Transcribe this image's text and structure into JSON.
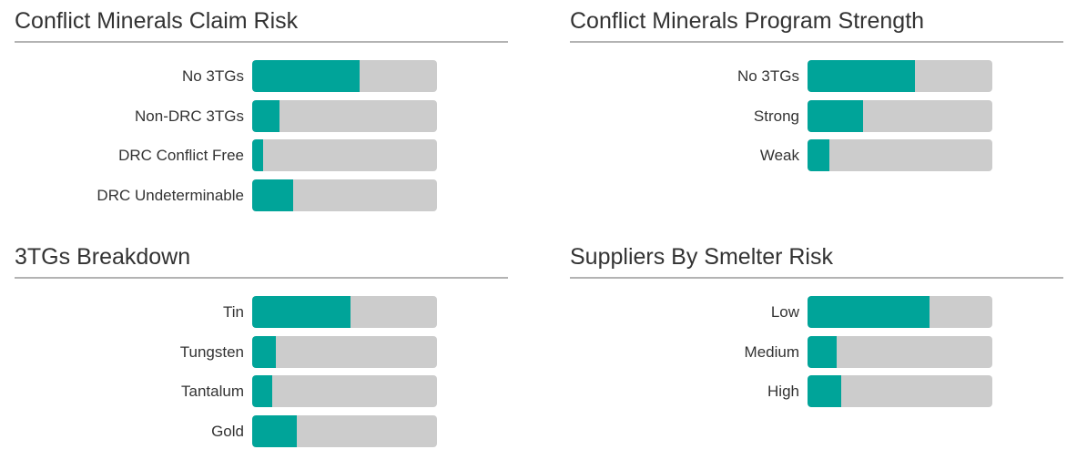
{
  "colors": {
    "fill": "#00a499",
    "track": "#cccccc",
    "rule": "#b3b3b3",
    "text": "#333333"
  },
  "chart_data": [
    {
      "type": "bar",
      "orientation": "horizontal",
      "title": "Conflict Minerals Claim Risk",
      "categories": [
        "No 3TGs",
        "Non-DRC 3TGs",
        "DRC Conflict Free",
        "DRC Undeterminable"
      ],
      "values": [
        0.58,
        0.15,
        0.06,
        0.22
      ],
      "xlim": [
        0,
        1
      ],
      "grid": false,
      "legend": "none"
    },
    {
      "type": "bar",
      "orientation": "horizontal",
      "title": "Conflict Minerals Program Strength",
      "categories": [
        "No 3TGs",
        "Strong",
        "Weak"
      ],
      "values": [
        0.58,
        0.3,
        0.12
      ],
      "xlim": [
        0,
        1
      ],
      "grid": false,
      "legend": "none"
    },
    {
      "type": "bar",
      "orientation": "horizontal",
      "title": "3TGs Breakdown",
      "categories": [
        "Tin",
        "Tungsten",
        "Tantalum",
        "Gold"
      ],
      "values": [
        0.53,
        0.13,
        0.11,
        0.24
      ],
      "xlim": [
        0,
        1
      ],
      "grid": false,
      "legend": "none"
    },
    {
      "type": "bar",
      "orientation": "horizontal",
      "title": "Suppliers By Smelter Risk",
      "categories": [
        "Low",
        "Medium",
        "High"
      ],
      "values": [
        0.66,
        0.16,
        0.18
      ],
      "xlim": [
        0,
        1
      ],
      "grid": false,
      "legend": "none"
    }
  ]
}
